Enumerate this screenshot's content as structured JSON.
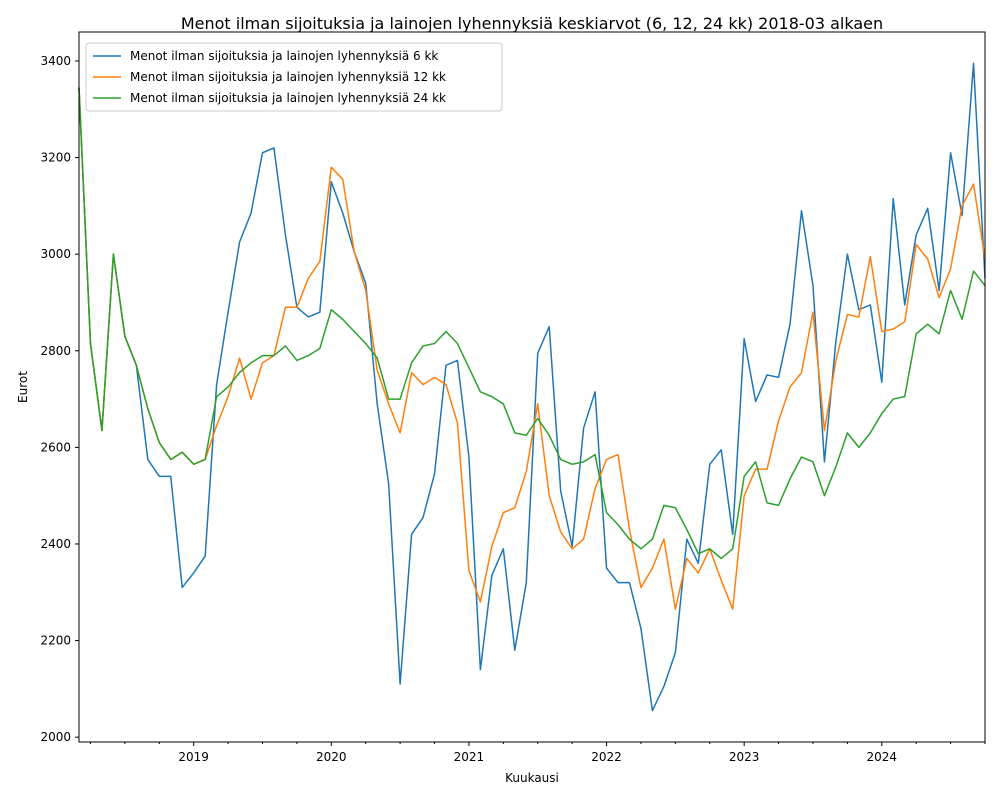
{
  "chart_data": {
    "type": "line",
    "title": "Menot ilman sijoituksia ja lainojen lyhennyksiä keskiarvot (6, 12, 24 kk) 2018-03 alkaen",
    "xlabel": "Kuukausi",
    "ylabel": "Eurot",
    "x_start": "2018-03",
    "x_end": "2024-10",
    "xlim": [
      "2018-03",
      "2024-10"
    ],
    "ylim": [
      1990,
      3460
    ],
    "y_ticks": [
      2000,
      2200,
      2400,
      2600,
      2800,
      3000,
      3200,
      3400
    ],
    "x_ticks": [
      {
        "label": "2019",
        "x": "2019-01"
      },
      {
        "label": "2020",
        "x": "2020-01"
      },
      {
        "label": "2021",
        "x": "2021-01"
      },
      {
        "label": "2022",
        "x": "2022-01"
      },
      {
        "label": "2023",
        "x": "2023-01"
      },
      {
        "label": "2024",
        "x": "2024-01"
      }
    ],
    "grid": false,
    "legend_position": "top-left",
    "series": [
      {
        "name": "Menot ilman sijoituksia ja lainojen lyhennyksiä 6 kk",
        "color": "#1f77b4",
        "values": [
          3345,
          2815,
          2635,
          3000,
          2830,
          2770,
          2575,
          2540,
          2540,
          2310,
          2340,
          2375,
          2730,
          2880,
          3025,
          3085,
          3210,
          3220,
          3040,
          2890,
          2870,
          2880,
          3150,
          3085,
          3005,
          2940,
          2690,
          2525,
          2110,
          2420,
          2455,
          2545,
          2770,
          2780,
          2580,
          2140,
          2335,
          2390,
          2180,
          2320,
          2795,
          2850,
          2510,
          2395,
          2640,
          2715,
          2350,
          2320,
          2320,
          2225,
          2055,
          2105,
          2175,
          2410,
          2360,
          2565,
          2595,
          2420,
          2825,
          2695,
          2750,
          2745,
          2855,
          3090,
          2935,
          2570,
          2820,
          3000,
          2885,
          2895,
          2735,
          3115,
          2895,
          3040,
          3095,
          2925,
          3210,
          3080,
          3395,
          2950
        ]
      },
      {
        "name": "Menot ilman sijoituksia ja lainojen lyhennyksiä 12 kk",
        "color": "#ff7f0e",
        "values": [
          3345,
          2815,
          2635,
          3000,
          2830,
          2770,
          2680,
          2610,
          2575,
          2590,
          2565,
          2575,
          2645,
          2705,
          2785,
          2700,
          2775,
          2790,
          2890,
          2890,
          2950,
          2985,
          3180,
          3155,
          3005,
          2925,
          2760,
          2690,
          2630,
          2755,
          2730,
          2745,
          2730,
          2650,
          2345,
          2280,
          2395,
          2465,
          2475,
          2550,
          2690,
          2500,
          2425,
          2390,
          2410,
          2515,
          2575,
          2585,
          2430,
          2310,
          2350,
          2410,
          2265,
          2370,
          2340,
          2390,
          2325,
          2265,
          2500,
          2555,
          2555,
          2655,
          2725,
          2755,
          2880,
          2635,
          2780,
          2875,
          2870,
          2995,
          2840,
          2845,
          2860,
          3020,
          2990,
          2910,
          2970,
          3100,
          3145,
          2990
        ]
      },
      {
        "name": "Menot ilman sijoituksia ja lainojen lyhennyksiä 24 kk",
        "color": "#2ca02c",
        "values": [
          3345,
          2815,
          2635,
          3000,
          2830,
          2770,
          2680,
          2610,
          2575,
          2590,
          2565,
          2575,
          2705,
          2725,
          2755,
          2775,
          2790,
          2790,
          2810,
          2780,
          2790,
          2805,
          2885,
          2865,
          2840,
          2815,
          2785,
          2700,
          2700,
          2775,
          2810,
          2815,
          2840,
          2815,
          2765,
          2715,
          2705,
          2690,
          2630,
          2625,
          2660,
          2625,
          2575,
          2565,
          2570,
          2585,
          2465,
          2440,
          2410,
          2390,
          2410,
          2480,
          2475,
          2430,
          2380,
          2390,
          2370,
          2390,
          2540,
          2570,
          2485,
          2480,
          2535,
          2580,
          2570,
          2500,
          2560,
          2630,
          2600,
          2630,
          2670,
          2700,
          2705,
          2835,
          2855,
          2835,
          2925,
          2865,
          2965,
          2935
        ]
      }
    ]
  }
}
